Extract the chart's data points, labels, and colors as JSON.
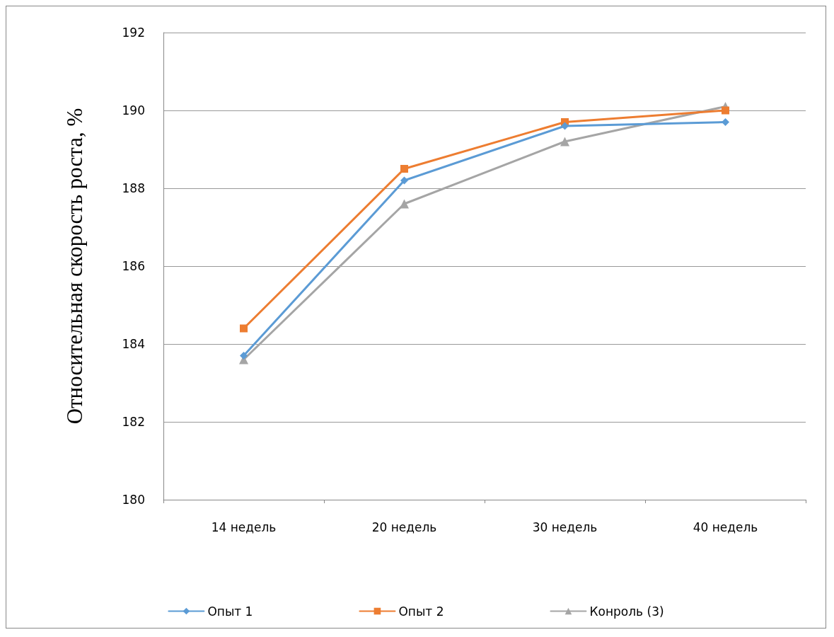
{
  "chart_data": {
    "type": "line",
    "ylabel": "Относительная скорость роста, %",
    "categories": [
      "14 недель",
      "20 недель",
      "30 недель",
      "40 недель"
    ],
    "series": [
      {
        "name": "Опыт 1",
        "color": "#5b9bd5",
        "marker": "diamond",
        "values": [
          183.7,
          188.2,
          189.6,
          189.7
        ]
      },
      {
        "name": "Опыт 2",
        "color": "#ed7d31",
        "marker": "square",
        "values": [
          184.4,
          188.5,
          189.7,
          190.0
        ]
      },
      {
        "name": "Конроль (3)",
        "color": "#a5a5a5",
        "marker": "triangle",
        "values": [
          183.6,
          187.6,
          189.2,
          190.1
        ]
      }
    ],
    "ylim": [
      180,
      192
    ],
    "yticks": [
      180,
      182,
      184,
      186,
      188,
      190,
      192
    ],
    "grid": "y",
    "legend": "bottom",
    "line_style": "solid"
  }
}
